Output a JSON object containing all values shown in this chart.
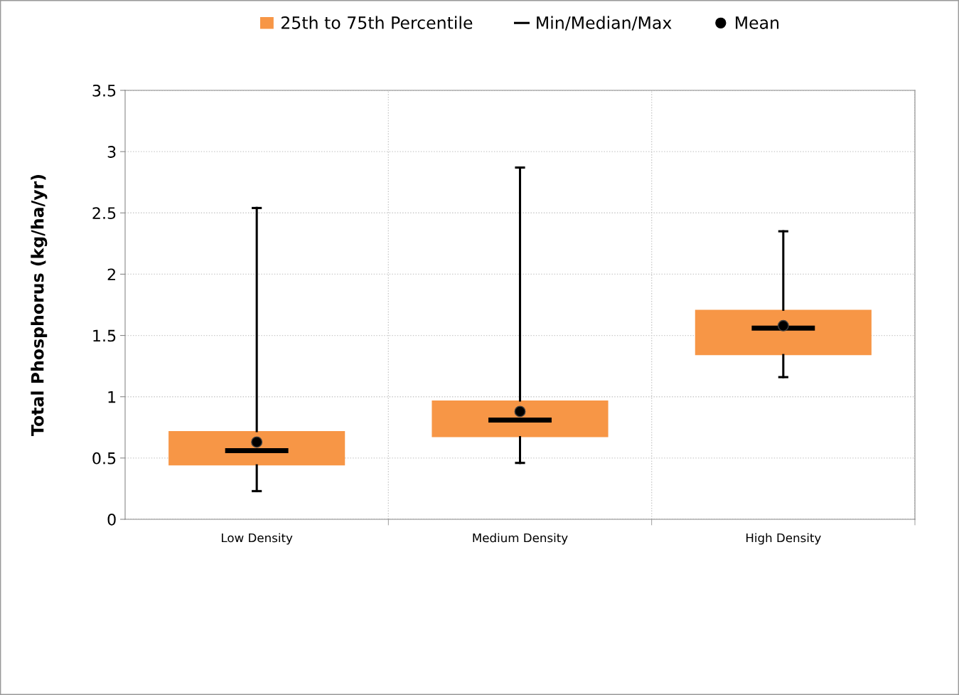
{
  "chart_data": {
    "type": "box",
    "ylabel": "Total Phosphorus (kg/ha/yr)",
    "categories": [
      "Low Density",
      "Medium Density",
      "High Density"
    ],
    "series": [
      {
        "name": "25th to 75th Percentile",
        "color": "#f79646",
        "boxes": [
          {
            "low": 0.23,
            "q1": 0.44,
            "median": 0.56,
            "q3": 0.72,
            "high": 2.54
          },
          {
            "low": 0.46,
            "q1": 0.67,
            "median": 0.81,
            "q3": 0.97,
            "high": 2.87
          },
          {
            "low": 1.16,
            "q1": 1.34,
            "median": 1.56,
            "q3": 1.71,
            "high": 2.35
          }
        ]
      },
      {
        "type": "scatter",
        "name": "Mean",
        "color": "#000000",
        "marker": "circle",
        "x": [
          "Low Density",
          "Medium Density",
          "High Density"
        ],
        "values": [
          0.63,
          0.88,
          1.58
        ]
      }
    ],
    "annotations": [
      "Min/Median/Max"
    ],
    "ylim": [
      0,
      3.5
    ],
    "yticks": [
      0,
      0.5,
      1,
      1.5,
      2,
      2.5,
      3,
      3.5
    ],
    "grid": true,
    "legend": "top"
  }
}
